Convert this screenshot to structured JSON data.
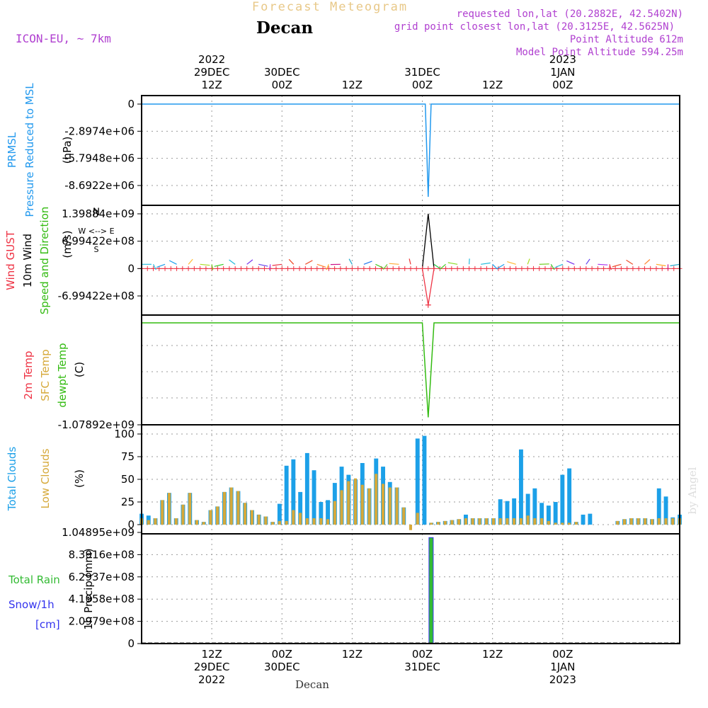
{
  "header": {
    "app_title": "Forecast Meteogram",
    "location": "Decan",
    "model": "ICON-EU, ~ 7km",
    "requested": "requested lon,lat (20.2882E, 42.5402N)",
    "gridpoint": "grid point closest lon,lat (20.3125E, 42.5625N)",
    "point_alt": "Point Altitude 612m",
    "model_alt": "Model Point Altitude 594.25m",
    "footer": "Decan",
    "credit": "by Angel"
  },
  "colors": {
    "total_clouds": "#1ca0e8",
    "low_clouds": "#d6a93a",
    "gust": "#ee3344",
    "wind": "#000000",
    "dewpt": "#33bb11",
    "pressure": "#2299ee",
    "rain": "#33bb33",
    "snow": "#3333ee",
    "title": "#e8c888",
    "meta": "#b040d0"
  },
  "chart_data": [
    {
      "type": "line",
      "panel": "pressure",
      "ylabel_lines": [
        "PRMSL",
        "Pressure Reduced to MSL"
      ],
      "unit": "(hPa)",
      "yticks": [
        "0",
        "-2.8974e+06",
        "-5.7948e+06",
        "-8.6922e+06"
      ],
      "ytick_values": [
        0,
        -2897400,
        -5794800,
        -8692200
      ],
      "ylim": [
        -10000000,
        700000
      ],
      "x_hours": [
        0,
        48,
        48.5,
        49,
        49.5,
        50,
        92
      ],
      "values": [
        0,
        0,
        0,
        -9900000,
        0,
        0,
        0
      ]
    },
    {
      "type": "line",
      "panel": "wind",
      "ylabel_lines": [
        "Wind GUST",
        "10m Wind",
        "Speed and Direction"
      ],
      "unit": "(m/s)",
      "compass": [
        "N",
        "W <--> E",
        "S"
      ],
      "yticks": [
        "1.39884e+09",
        "6.99422e+08",
        "0",
        "-6.99422e+08"
      ],
      "ytick_values": [
        1398840000,
        699422000,
        0,
        -699422000
      ],
      "ylim": [
        -1100000000,
        1500000000
      ],
      "series": [
        {
          "name": "10m Wind",
          "x_hours": [
            48,
            49,
            50
          ],
          "values": [
            0,
            1398840000,
            0
          ]
        },
        {
          "name": "Wind GUST",
          "x_hours": [
            48,
            49,
            50
          ],
          "values": [
            0,
            -930000000,
            0
          ]
        }
      ]
    },
    {
      "type": "line",
      "panel": "temperature",
      "ylabel_lines": [
        "2m Temp",
        "SFC Temp",
        "dewpt Temp"
      ],
      "unit": "(C)",
      "yticks": [
        "-1.07892e+09"
      ],
      "ytick_values": [
        -1078920000
      ],
      "ylim": [
        -1078920000,
        0
      ],
      "series": [
        {
          "name": "dewpt Temp",
          "x_hours": [
            0,
            48,
            49,
            50,
            92
          ],
          "values": [
            0,
            0,
            -1000000000,
            0,
            0
          ]
        }
      ]
    },
    {
      "type": "bar",
      "panel": "clouds",
      "ylabel_lines": [
        "Total Clouds",
        "Low Clouds"
      ],
      "unit": "(%)",
      "yticks": [
        "100",
        "75",
        "50",
        "25",
        "0"
      ],
      "ytick_values": [
        100,
        75,
        50,
        25,
        0
      ],
      "ylim": [
        0,
        100
      ],
      "total": [
        12,
        10,
        7,
        27,
        35,
        7,
        22,
        35,
        5,
        3,
        16,
        20,
        36,
        41,
        37,
        24,
        16,
        11,
        9,
        3,
        23,
        65,
        72,
        36,
        79,
        60,
        25,
        27,
        46,
        64,
        55,
        50,
        68,
        40,
        73,
        64,
        47,
        41,
        19,
        0,
        95,
        98,
        2,
        3,
        4,
        5,
        6,
        11,
        7,
        7,
        7,
        7,
        28,
        26,
        29,
        83,
        34,
        40,
        24,
        21,
        25,
        55,
        62,
        3,
        11,
        12,
        0,
        0,
        0,
        4,
        6,
        7,
        7,
        7,
        6,
        40,
        31,
        8,
        11
      ],
      "low": [
        7,
        5,
        7,
        27,
        35,
        7,
        22,
        35,
        5,
        3,
        16,
        20,
        36,
        41,
        37,
        24,
        16,
        11,
        9,
        3,
        4,
        4,
        16,
        13,
        7,
        7,
        7,
        6,
        26,
        38,
        48,
        51,
        44,
        40,
        56,
        45,
        41,
        41,
        19,
        -6,
        13,
        0,
        2,
        3,
        4,
        5,
        6,
        7,
        7,
        7,
        7,
        7,
        7,
        7,
        7,
        7,
        10,
        7,
        7,
        4,
        2,
        2,
        2,
        3,
        0,
        0,
        0,
        0,
        0,
        4,
        6,
        7,
        7,
        7,
        6,
        7,
        7,
        7,
        7
      ]
    },
    {
      "type": "bar",
      "panel": "precip",
      "ylabel_lines": [
        "Total Rain",
        "Snow/1h",
        "[cm]"
      ],
      "unit": "1h Precip (mm)",
      "yticks": [
        "1.04895e+09",
        "8.3916e+08",
        "6.2937e+08",
        "4.1958e+08",
        "2.0979e+08",
        "0"
      ],
      "ytick_values": [
        1048950000,
        839160000,
        629370000,
        419580000,
        209790000,
        0
      ],
      "ylim": [
        0,
        1048950000
      ],
      "bars": [
        {
          "x_hour": 49.5,
          "value": 1000000000
        }
      ]
    }
  ],
  "time_axis": {
    "start": "2022-12-29 00Z",
    "end": "2023-01-01 08Z",
    "top_labels": [
      {
        "h": 12,
        "lines": [
          "2022",
          "29DEC",
          "12Z"
        ]
      },
      {
        "h": 24,
        "lines": [
          "30DEC",
          "00Z"
        ]
      },
      {
        "h": 36,
        "lines": [
          "12Z"
        ]
      },
      {
        "h": 48,
        "lines": [
          "31DEC",
          "00Z"
        ]
      },
      {
        "h": 60,
        "lines": [
          "12Z"
        ]
      },
      {
        "h": 72,
        "lines": [
          "2023",
          "1JAN",
          "00Z"
        ]
      }
    ],
    "bottom_labels": [
      {
        "h": 12,
        "lines": [
          "12Z",
          "29DEC",
          "2022"
        ]
      },
      {
        "h": 24,
        "lines": [
          "00Z",
          "30DEC"
        ]
      },
      {
        "h": 36,
        "lines": [
          "12Z"
        ]
      },
      {
        "h": 48,
        "lines": [
          "00Z",
          "31DEC"
        ]
      },
      {
        "h": 60,
        "lines": [
          "12Z"
        ]
      },
      {
        "h": 72,
        "lines": [
          "00Z",
          "1JAN",
          "2023"
        ]
      }
    ]
  }
}
